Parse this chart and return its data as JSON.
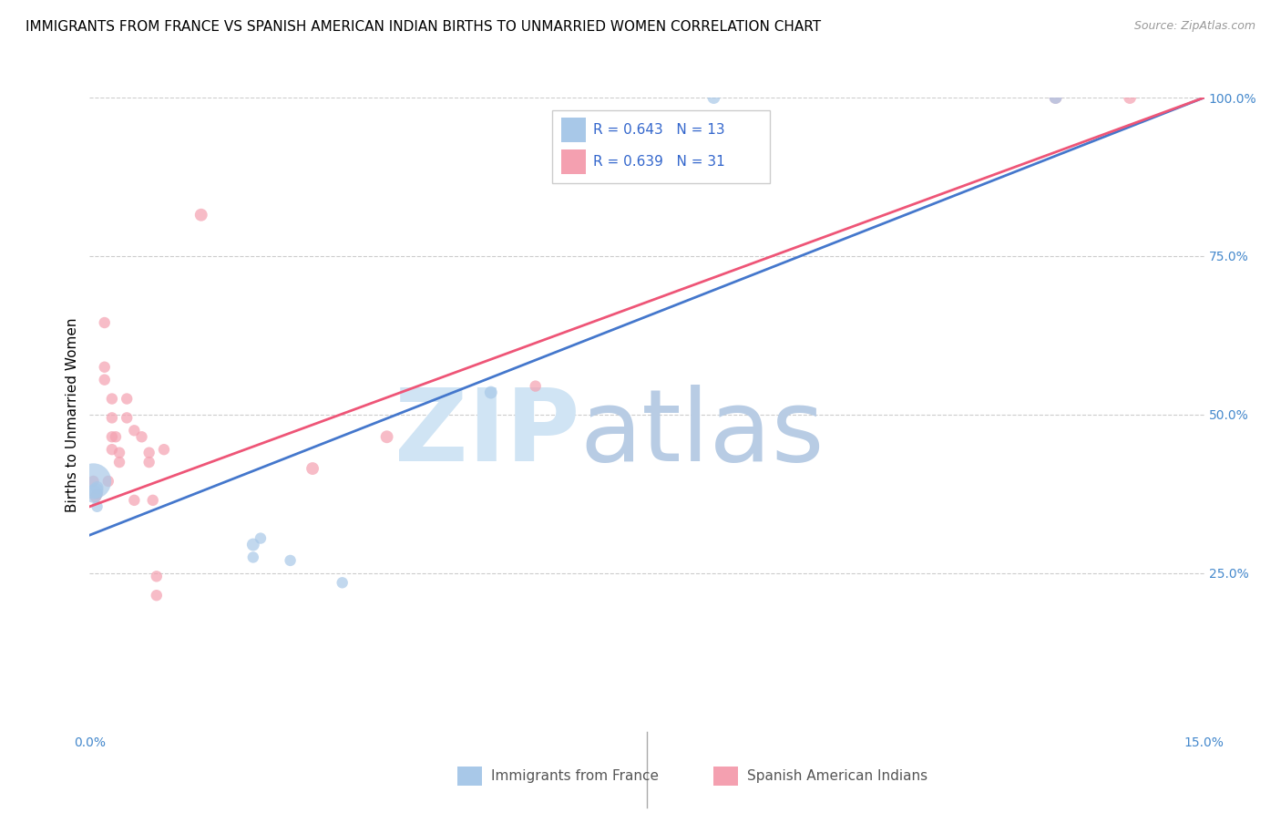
{
  "title": "IMMIGRANTS FROM FRANCE VS SPANISH AMERICAN INDIAN BIRTHS TO UNMARRIED WOMEN CORRELATION CHART",
  "source": "Source: ZipAtlas.com",
  "ylabel": "Births to Unmarried Women",
  "xlim": [
    0,
    0.15
  ],
  "ylim": [
    0,
    1.0
  ],
  "yticks_right": [
    0.25,
    0.5,
    0.75,
    1.0
  ],
  "ytick_labels_right": [
    "25.0%",
    "50.0%",
    "75.0%",
    "100.0%"
  ],
  "legend_blue_R": "R = 0.643",
  "legend_blue_N": "N = 13",
  "legend_pink_R": "R = 0.639",
  "legend_pink_N": "N = 31",
  "legend_label_blue": "Immigrants from France",
  "legend_label_pink": "Spanish American Indians",
  "blue_color": "#a8c8e8",
  "pink_color": "#f4a0b0",
  "blue_line_color": "#4477cc",
  "pink_line_color": "#ee5577",
  "blue_scatter_x": [
    0.0005,
    0.0005,
    0.0008,
    0.001,
    0.001,
    0.022,
    0.022,
    0.023,
    0.027,
    0.034,
    0.054,
    0.084,
    0.13
  ],
  "blue_scatter_y": [
    0.395,
    0.375,
    0.38,
    0.385,
    0.355,
    0.295,
    0.275,
    0.305,
    0.27,
    0.235,
    0.535,
    1.0,
    1.0
  ],
  "blue_scatter_size": [
    800,
    200,
    150,
    100,
    80,
    100,
    80,
    80,
    80,
    80,
    100,
    100,
    100
  ],
  "pink_scatter_x": [
    0.0005,
    0.0008,
    0.001,
    0.002,
    0.002,
    0.002,
    0.0025,
    0.003,
    0.003,
    0.003,
    0.003,
    0.0035,
    0.004,
    0.004,
    0.005,
    0.005,
    0.006,
    0.006,
    0.007,
    0.008,
    0.008,
    0.0085,
    0.009,
    0.009,
    0.01,
    0.015,
    0.03,
    0.04,
    0.06,
    0.13,
    0.14
  ],
  "pink_scatter_y": [
    0.395,
    0.37,
    0.375,
    0.645,
    0.575,
    0.555,
    0.395,
    0.525,
    0.495,
    0.465,
    0.445,
    0.465,
    0.44,
    0.425,
    0.525,
    0.495,
    0.475,
    0.365,
    0.465,
    0.44,
    0.425,
    0.365,
    0.245,
    0.215,
    0.445,
    0.815,
    0.415,
    0.465,
    0.545,
    1.0,
    1.0
  ],
  "pink_scatter_size": [
    80,
    80,
    80,
    80,
    80,
    80,
    80,
    80,
    80,
    80,
    80,
    80,
    80,
    80,
    80,
    80,
    80,
    80,
    80,
    80,
    80,
    80,
    80,
    80,
    80,
    100,
    100,
    100,
    80,
    100,
    100
  ],
  "blue_line_x": [
    0.0,
    0.15
  ],
  "blue_line_y": [
    0.31,
    1.0
  ],
  "pink_line_x": [
    0.0,
    0.15
  ],
  "pink_line_y": [
    0.355,
    1.0
  ],
  "background_color": "#ffffff",
  "grid_color": "#cccccc",
  "title_fontsize": 11,
  "axis_label_fontsize": 11,
  "tick_fontsize": 10
}
